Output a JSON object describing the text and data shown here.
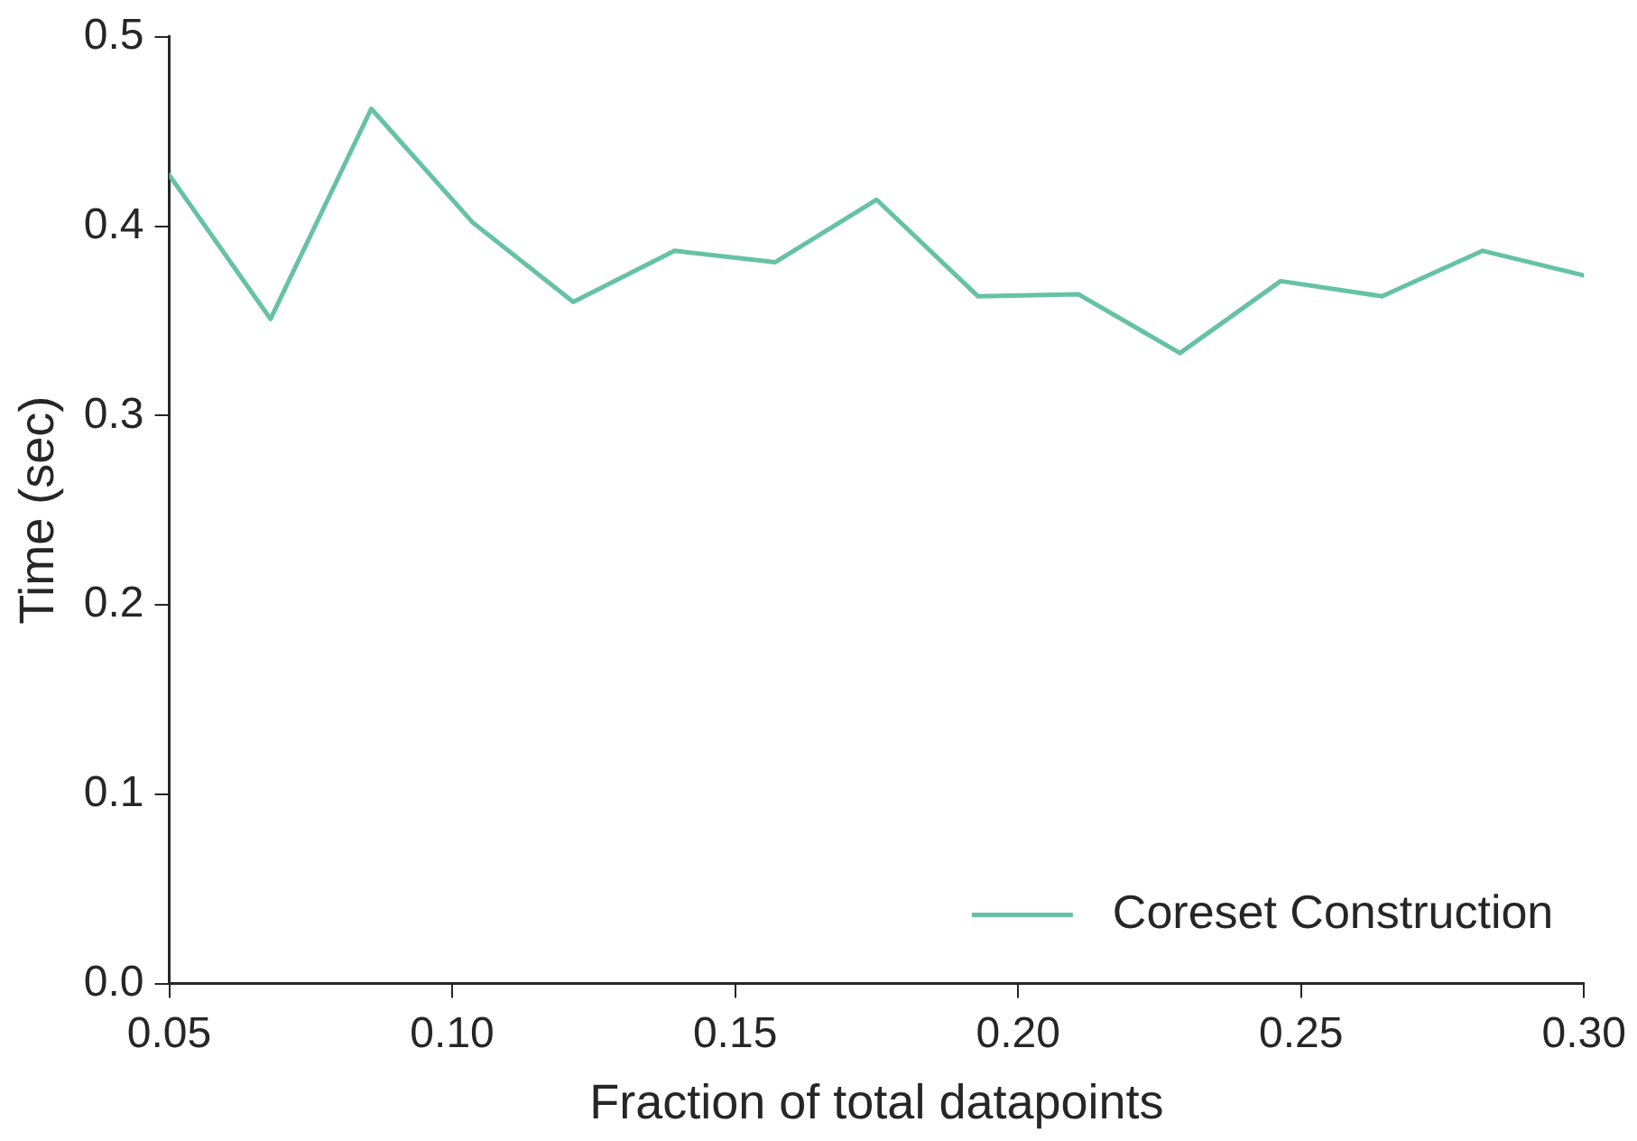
{
  "chart_data": {
    "type": "line",
    "xlabel": "Fraction of total datapoints",
    "ylabel": "Time (sec)",
    "x": [
      0.05,
      0.0679,
      0.0857,
      0.1036,
      0.1214,
      0.1393,
      0.1571,
      0.175,
      0.1929,
      0.2107,
      0.2286,
      0.2464,
      0.2643,
      0.2821,
      0.3
    ],
    "series": [
      {
        "name": "Coreset Construction",
        "color": "#66c2a5",
        "values": [
          0.427,
          0.351,
          0.462,
          0.402,
          0.36,
          0.387,
          0.381,
          0.414,
          0.363,
          0.364,
          0.333,
          0.371,
          0.363,
          0.387,
          0.374
        ]
      }
    ],
    "xlim": [
      0.05,
      0.3
    ],
    "xticks": [
      0.05,
      {
        "value": 0.1,
        "label": "0.10"
      },
      0.15,
      {
        "value": 0.2,
        "label": "0.20"
      },
      0.25,
      {
        "value": 0.3,
        "label": "0.30"
      }
    ],
    "ylim": [
      0,
      0.5
    ],
    "yticks": [
      {
        "value": 0,
        "label": "0.0"
      },
      0.1,
      0.2,
      0.3,
      0.4,
      0.5
    ],
    "grid": false,
    "legend": "bottom right",
    "marker": "none",
    "line_style": "solid"
  }
}
